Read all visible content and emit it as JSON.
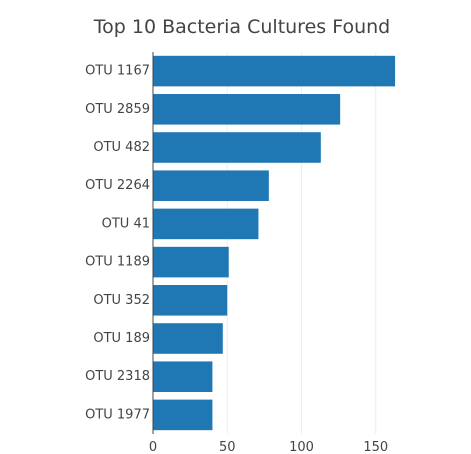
{
  "chart_data": {
    "type": "bar",
    "orientation": "horizontal",
    "title": "Top 10 Bacteria Cultures Found",
    "xlabel": "",
    "ylabel": "",
    "categories": [
      "OTU 1167",
      "OTU 2859",
      "OTU 482",
      "OTU 2264",
      "OTU 41",
      "OTU 1189",
      "OTU 352",
      "OTU 189",
      "OTU 2318",
      "OTU 1977"
    ],
    "values": [
      163,
      126,
      113,
      78,
      71,
      51,
      50,
      47,
      40,
      40
    ],
    "xlim": [
      0,
      169
    ],
    "x_ticks": [
      0,
      50,
      100,
      150
    ],
    "grid": true,
    "bar_color": "#1f77b4",
    "legend": "none"
  }
}
